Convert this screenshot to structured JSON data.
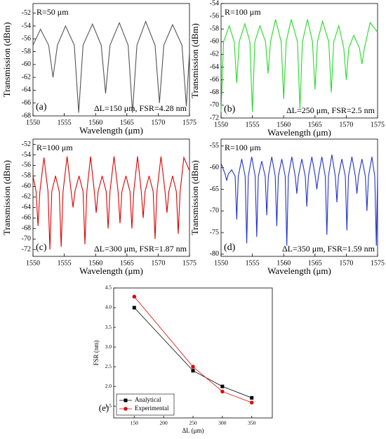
{
  "chart_data": [
    {
      "type": "line",
      "panel_label": "(a)",
      "annotation_top": "R=50 μm",
      "annotation_bottom": "ΔL=150 μm, FSR=4.28 nm",
      "x_label": "Wavelength (μm)",
      "y_label": "Transmission (dBm)",
      "color": "#555555",
      "xlim": [
        1550,
        1575
      ],
      "xticks": [
        1550,
        1555,
        1560,
        1565,
        1570,
        1575
      ],
      "ylim": [
        -68,
        -50.5
      ],
      "yticks": [
        -68,
        -66,
        -64,
        -62,
        -60,
        -58,
        -56,
        -54,
        -52
      ],
      "x": [
        1550,
        1551.2,
        1552.5,
        1553.2,
        1553.9,
        1555.2,
        1556.6,
        1557.3,
        1558,
        1559.5,
        1560.9,
        1561.6,
        1562.3,
        1563.8,
        1565.2,
        1565.9,
        1566.6,
        1568,
        1569.5,
        1570.2,
        1570.9,
        1572.3,
        1573.8,
        1574.5,
        1575
      ],
      "values": [
        -57,
        -54.5,
        -57,
        -62,
        -57,
        -54,
        -57,
        -67.5,
        -57,
        -53.7,
        -57,
        -64.5,
        -57,
        -53.5,
        -57,
        -67.5,
        -57,
        -53.3,
        -57,
        -66,
        -57,
        -53.8,
        -57,
        -66.5,
        -58
      ]
    },
    {
      "type": "line",
      "panel_label": "(b)",
      "annotation_top": "R=100 μm",
      "annotation_bottom": "ΔL=250 μm, FSR=2.5 nm",
      "x_label": "Wavelength (μm)",
      "y_label": "Transmission (dBm)",
      "color": "#22dd22",
      "xlim": [
        1550,
        1575
      ],
      "xticks": [
        1550,
        1555,
        1560,
        1565,
        1570,
        1575
      ],
      "ylim": [
        -72,
        -54
      ],
      "yticks": [
        -72,
        -70,
        -68,
        -66,
        -64,
        -62,
        -60,
        -58,
        -56,
        -54
      ],
      "x": [
        1550,
        1550.4,
        1551.3,
        1552.1,
        1552.5,
        1552.9,
        1553.8,
        1554.6,
        1555,
        1555.4,
        1556.2,
        1557.1,
        1557.5,
        1557.9,
        1558.7,
        1559.6,
        1560,
        1560.4,
        1561.2,
        1562.2,
        1562.6,
        1563,
        1563.8,
        1564.6,
        1565,
        1565.4,
        1566.2,
        1567.2,
        1567.6,
        1568,
        1568.8,
        1569.6,
        1570,
        1570.4,
        1571.2,
        1572.1,
        1572.5,
        1572.9,
        1573.8,
        1575
      ],
      "values": [
        -71,
        -60,
        -57.5,
        -60,
        -66.5,
        -60,
        -57.2,
        -60,
        -71,
        -60,
        -57.5,
        -60,
        -65,
        -60,
        -56.5,
        -60,
        -69,
        -60,
        -56.5,
        -60,
        -70.5,
        -60,
        -56.5,
        -60,
        -67.5,
        -60,
        -56.8,
        -60,
        -68,
        -60,
        -57.5,
        -61,
        -66,
        -61,
        -59,
        -61,
        -63.5,
        -61,
        -57,
        -58.5
      ]
    },
    {
      "type": "line",
      "panel_label": "(c)",
      "annotation_top": "R=100 μm",
      "annotation_bottom": "ΔL=300 μm, FSR=1.87 nm",
      "x_label": "Wavelength (μm)",
      "y_label": "Transmission (dBm)",
      "color": "#e00000",
      "xlim": [
        1550,
        1575
      ],
      "xticks": [
        1550,
        1555,
        1560,
        1565,
        1570,
        1575
      ],
      "ylim": [
        -73.3,
        -51
      ],
      "yticks": [
        -72,
        -70,
        -68,
        -66,
        -64,
        -62,
        -60,
        -58,
        -56,
        -54,
        -52
      ],
      "x": [
        1550,
        1550.5,
        1550.8,
        1551.1,
        1551.75,
        1552.4,
        1552.7,
        1553,
        1553.6,
        1554.2,
        1554.5,
        1554.8,
        1555.45,
        1556.1,
        1556.4,
        1556.7,
        1557.35,
        1558,
        1558.3,
        1558.6,
        1559.2,
        1559.8,
        1560.1,
        1560.4,
        1561.05,
        1561.7,
        1562,
        1562.3,
        1562.95,
        1563.6,
        1563.9,
        1564.2,
        1564.85,
        1565.5,
        1565.8,
        1566.1,
        1566.7,
        1567.3,
        1567.6,
        1567.9,
        1568.55,
        1569.2,
        1569.5,
        1569.8,
        1570.45,
        1571.1,
        1571.4,
        1571.7,
        1572.3,
        1572.9,
        1573.2,
        1573.5,
        1574.1,
        1575
      ],
      "values": [
        -58,
        -61,
        -67.5,
        -61,
        -54.5,
        -61,
        -72,
        -61,
        -58,
        -61,
        -71.5,
        -61,
        -54.3,
        -61,
        -64,
        -61,
        -58,
        -61,
        -71,
        -61,
        -54.3,
        -61,
        -65,
        -61,
        -58,
        -61,
        -68,
        -61,
        -54.3,
        -61,
        -67,
        -61,
        -58,
        -61,
        -68,
        -61,
        -54.3,
        -61,
        -66,
        -61,
        -58,
        -61,
        -70,
        -61,
        -54.3,
        -61,
        -65,
        -61,
        -58,
        -61,
        -69,
        -61,
        -54.5,
        -57
      ]
    },
    {
      "type": "line",
      "panel_label": "(d)",
      "annotation_top": "R=100 μm",
      "annotation_bottom": "ΔL=350 μm, FSR=1.59 nm",
      "x_label": "Wavelength (μm)",
      "y_label": "Transmission (dBm)",
      "color": "#2233cc",
      "xlim": [
        1550,
        1575
      ],
      "xticks": [
        1550,
        1555,
        1560,
        1565,
        1570,
        1575
      ],
      "ylim": [
        -80.5,
        -53.4
      ],
      "yticks": [
        -80,
        -75,
        -70,
        -65,
        -60,
        -55
      ],
      "x": [
        1550,
        1550.65,
        1550.9,
        1551.15,
        1551.7,
        1552.25,
        1552.5,
        1552.75,
        1553.3,
        1553.85,
        1554.1,
        1554.35,
        1554.9,
        1555.45,
        1555.7,
        1555.95,
        1556.5,
        1557.05,
        1557.3,
        1557.55,
        1558.1,
        1558.65,
        1558.9,
        1559.15,
        1559.7,
        1560.25,
        1560.5,
        1560.75,
        1561.3,
        1561.85,
        1562.1,
        1562.35,
        1562.9,
        1563.45,
        1563.7,
        1563.95,
        1564.5,
        1565.05,
        1565.3,
        1565.55,
        1566.1,
        1566.65,
        1566.9,
        1567.15,
        1567.7,
        1568.25,
        1568.5,
        1568.75,
        1569.3,
        1569.85,
        1570.1,
        1570.35,
        1570.9,
        1571.45,
        1571.7,
        1571.95,
        1572.5,
        1573.05,
        1573.3,
        1573.55,
        1574.1,
        1574.55,
        1574.8,
        1575
      ],
      "values": [
        -59,
        -61.5,
        -63,
        -61.5,
        -60.5,
        -62,
        -72,
        -62,
        -58,
        -62,
        -77.5,
        -62,
        -57.5,
        -62,
        -76,
        -62,
        -58.5,
        -62,
        -71,
        -62,
        -57.5,
        -62,
        -73.5,
        -62,
        -58,
        -62,
        -78,
        -62,
        -57.5,
        -62,
        -66,
        -62,
        -58,
        -62,
        -69,
        -62,
        -57.5,
        -62,
        -65,
        -62,
        -57.5,
        -62,
        -75.5,
        -62,
        -57,
        -62,
        -68,
        -62,
        -58,
        -62,
        -74.5,
        -62,
        -57.5,
        -62,
        -66,
        -62,
        -58,
        -62,
        -70,
        -62,
        -57.5,
        -62,
        -78,
        -62
      ]
    },
    {
      "type": "line",
      "panel_label": "(e)",
      "x_label": "ΔL (μm)",
      "y_label": "FSR (nm)",
      "legend": "lower left",
      "xlim": [
        115,
        385
      ],
      "xticks": [
        150,
        200,
        250,
        300,
        350
      ],
      "ylim": [
        1.2,
        4.5
      ],
      "yticks": [
        {
          "value": 1.5,
          "label": "1.5"
        },
        {
          "value": 2,
          "label": "2.0"
        },
        {
          "value": 2.5,
          "label": "2.5"
        },
        {
          "value": 3,
          "label": "3.0"
        },
        {
          "value": 3.5,
          "label": "3.5"
        },
        {
          "value": 4,
          "label": "4.0"
        },
        {
          "value": 4.5,
          "label": "4.5"
        }
      ],
      "x": [
        150,
        250,
        300,
        350
      ],
      "series": [
        {
          "name": "Analytical",
          "color": "#000000",
          "marker": "square",
          "values": [
            4.0,
            2.4,
            2.0,
            1.71
          ]
        },
        {
          "name": "Experimental",
          "color": "#e00000",
          "marker": "circle",
          "values": [
            4.28,
            2.5,
            1.87,
            1.59
          ]
        }
      ]
    }
  ]
}
